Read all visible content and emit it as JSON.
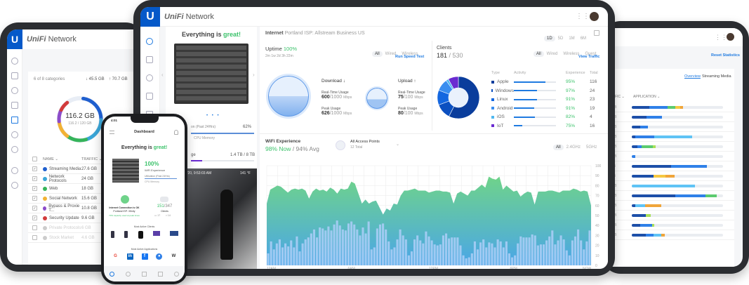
{
  "brand": {
    "name": "Network",
    "prefix": "UniFi",
    "logo_letter": "U"
  },
  "left_tablet": {
    "categories_label": "6 of 8 categories",
    "download": "↓ 45.5 GB",
    "upload": "↑ 70.7 GB",
    "donut_value": "116.2 GB",
    "donut_sub": "116.2 / 120 GB",
    "col_name": "NAME ⌄",
    "col_traffic": "TRAFFIC ⌄",
    "rows": [
      {
        "name": "Streaming Media",
        "traffic": "27.6 GB",
        "color": "#1f5fcf",
        "checked": true
      },
      {
        "name": "Network Protocols",
        "traffic": "24 GB",
        "color": "#3aa6d8",
        "checked": true
      },
      {
        "name": "Web",
        "traffic": "18 GB",
        "color": "#35b45a",
        "checked": true
      },
      {
        "name": "Social Network",
        "traffic": "15.6 GB",
        "color": "#f2b234",
        "checked": true
      },
      {
        "name": "Bypass & Proxie T...",
        "traffic": "10.8 GB",
        "color": "#8c4cc9",
        "checked": true
      },
      {
        "name": "Security Update",
        "traffic": "9.6 GB",
        "color": "#d23b3b",
        "checked": true
      },
      {
        "name": "Private Protocols",
        "traffic": "6 GB",
        "color": "#ccc",
        "checked": false
      },
      {
        "name": "Stock Market",
        "traffic": "4.6 GB",
        "color": "#ccc",
        "checked": false
      }
    ]
  },
  "center": {
    "status_prefix": "Everything is ",
    "status_word": "great!",
    "utilization_label": "on (Past 24Hrs)",
    "utilization_value": "62%",
    "util_legend": "CPU  Memory",
    "storage_label": "ge",
    "storage_value": "1.4 TB / 8 TB",
    "camera_timestamp": "R: 2/25/20, 9:53:03 AM",
    "camera_temp": "141 °F",
    "internet_title": "Internet",
    "internet_isp": "Portland ISP: Allstream Business US",
    "ranges": [
      "1D",
      "5D",
      "1M",
      "6M"
    ],
    "uptime_label": "Uptime",
    "uptime_value": "100%",
    "uptime_duration": "2m 1w 2d 3h 22m",
    "conn_filters": [
      "All",
      "Wired",
      "Wireless"
    ],
    "speed_test": "Run Speed Test",
    "download": {
      "title": "Download ↓",
      "rt_label": "Real-Time Usage",
      "rt_value": "600",
      "rt_max": "/1000",
      "unit": "Mbps",
      "peak_label": "Peak Usage",
      "peak_value": "626",
      "peak_max": "/1000"
    },
    "upload": {
      "title": "Upload ↑",
      "rt_label": "Real-Time Usage",
      "rt_value": "75",
      "rt_max": "/100",
      "unit": "Mbps",
      "peak_label": "Peak Usage",
      "peak_value": "80",
      "peak_max": "/100"
    },
    "clients_label": "Clients",
    "clients_value": "181",
    "clients_total": "/ 530",
    "client_filters": [
      "All",
      "Wired",
      "Wireless",
      "Guest"
    ],
    "view_traffic": "View Traffic",
    "client_headers": [
      "Type",
      "Activity",
      "Experience",
      "Total"
    ],
    "client_types": [
      {
        "type": "Apple",
        "activity": 0.75,
        "experience": "95%",
        "total": "116",
        "color": "#0a3d9c"
      },
      {
        "type": "Windows",
        "activity": 0.55,
        "experience": "97%",
        "total": "24",
        "color": "#0b4fc0"
      },
      {
        "type": "Linux",
        "activity": 0.55,
        "experience": "91%",
        "total": "23",
        "color": "#1467e0"
      },
      {
        "type": "Android",
        "activity": 0.48,
        "experience": "91%",
        "total": "19",
        "color": "#3a8ef0"
      },
      {
        "type": "iOS",
        "activity": 0.5,
        "experience": "82%",
        "total": "4",
        "color": "#4fb8f0"
      },
      {
        "type": "IoT",
        "activity": 0.2,
        "experience": "75%",
        "total": "16",
        "color": "#6a2bd1"
      }
    ],
    "wifi_label": "WiFi Experience",
    "wifi_now": "98% Now",
    "wifi_avg": "/ 94% Avg",
    "ap_label": "All Access Points",
    "ap_total": "12 Total",
    "band_filters": [
      "All",
      "2.4GHz",
      "5GHz"
    ]
  },
  "right_tablet": {
    "reset": "Reset Statistics",
    "tab_overview": "Overview",
    "tab_streaming": "Streaming Media",
    "col_traffic": "FFIC ⌄",
    "col_application": "APPLICATION ⌄",
    "rows": [
      {
        "traffic": "/ 6.9 GB",
        "segments": [
          [
            0.19,
            "#1d4fa8"
          ],
          [
            0.2,
            "#2f80e8"
          ],
          [
            0.09,
            "#5ccb6f"
          ],
          [
            0.05,
            "#f5c842"
          ],
          [
            0.03,
            "#f0a53a"
          ]
        ]
      },
      {
        "traffic": "/ 5.7 GB",
        "segments": [
          [
            0.16,
            "#1d4fa8"
          ],
          [
            0.17,
            "#2f80e8"
          ]
        ]
      },
      {
        "traffic": "/ 8.4 GB",
        "segments": [
          [
            0.09,
            "#1d4fa8"
          ],
          [
            0.09,
            "#2f80e8"
          ]
        ]
      },
      {
        "traffic": "/ 3.3 GB",
        "segments": [
          [
            0.04,
            "#1d4fa8"
          ],
          [
            0.21,
            "#2f80e8"
          ],
          [
            0.41,
            "#5fc3f5"
          ]
        ]
      },
      {
        "traffic": "/ 7.1 GB",
        "segments": [
          [
            0.06,
            "#1d4fa8"
          ],
          [
            0.05,
            "#2f80e8"
          ],
          [
            0.12,
            "#5ccb6f"
          ],
          [
            0.03,
            "#a8e05a"
          ]
        ]
      },
      {
        "traffic": "/ 5.2 GB",
        "segments": [
          [
            0.04,
            "#2f80e8"
          ]
        ]
      },
      {
        "traffic": "/ 14 GB",
        "segments": [
          [
            0.43,
            "#1d4fa8"
          ],
          [
            0.39,
            "#2f80e8"
          ]
        ]
      },
      {
        "traffic": "/ 19 GB",
        "segments": [
          [
            0.24,
            "#1d4fa8"
          ],
          [
            0.13,
            "#f5c842"
          ],
          [
            0.1,
            "#f0a53a"
          ]
        ]
      },
      {
        "traffic": "/ 7.1 GB",
        "segments": [
          [
            0.69,
            "#5fc3f5"
          ]
        ]
      },
      {
        "traffic": "/ 7.1 GB",
        "segments": [
          [
            0.48,
            "#1d4fa8"
          ],
          [
            0.33,
            "#2f80e8"
          ],
          [
            0.12,
            "#5ccb6f"
          ]
        ]
      },
      {
        "traffic": "/ 7.1 GB",
        "segments": [
          [
            0.04,
            "#1d4fa8"
          ],
          [
            0.11,
            "#5fc3f5"
          ],
          [
            0.17,
            "#f0a53a"
          ]
        ]
      },
      {
        "traffic": "/ 7.1 GB",
        "segments": [
          [
            0.15,
            "#1d4fa8"
          ],
          [
            0.06,
            "#a8e05a"
          ]
        ]
      },
      {
        "traffic": "/ 7.1 GB",
        "segments": [
          [
            0.09,
            "#1d4fa8"
          ],
          [
            0.13,
            "#2f80e8"
          ],
          [
            0.03,
            "#a8e05a"
          ]
        ]
      },
      {
        "traffic": "/ 7.1 GB",
        "segments": [
          [
            0.15,
            "#1d4fa8"
          ],
          [
            0.09,
            "#2f80e8"
          ],
          [
            0.08,
            "#5fc3f5"
          ],
          [
            0.04,
            "#f0a53a"
          ]
        ]
      }
    ]
  },
  "phone": {
    "time": "4:01",
    "title": "Dashboard",
    "status_prefix": "Everything is ",
    "status_word": "great!",
    "wifi_value": "100%",
    "wifi_label": "WiFi Experience",
    "util_label": "Utilization (Past 24Hrs)",
    "util_legend": "CPU  Memory",
    "internet_label": "Internet Connection is OK",
    "isp": "Portland ISP: Xfinity",
    "capacity": "70% capacity used at peak times",
    "clients_value": "151",
    "clients_total": "/347",
    "clients_label": "Clients",
    "wired": "17",
    "wireless": "14",
    "most_active_clients": "Most Active Clients",
    "most_active_apps": "Most Active Applications",
    "apps": [
      "G",
      "in",
      "f",
      "●",
      "W"
    ]
  },
  "chart_data": {
    "type": "area+bar",
    "title": "WiFi Experience",
    "x_ticks": [
      "12AM",
      "6AM",
      "12PM",
      "6PM",
      "NOW"
    ],
    "y_ticks": [
      0,
      10,
      20,
      30,
      40,
      50,
      60,
      70,
      80,
      90,
      100
    ],
    "ylim": [
      0,
      100
    ],
    "grid": true,
    "area_color": "#6fd38a",
    "area_color_bottom": "#4aa6e8",
    "bar_color": "#a9cdf5",
    "area_values": [
      62,
      76,
      78,
      80,
      79,
      76,
      73,
      76,
      77,
      76,
      77,
      75,
      67,
      74,
      77,
      75,
      76,
      74,
      78,
      76,
      72,
      77,
      76,
      77,
      84,
      82,
      72,
      62,
      66,
      62,
      64,
      65,
      58,
      51,
      57,
      55,
      62,
      61,
      70,
      75,
      75,
      76,
      77,
      75,
      75,
      75,
      73,
      74,
      75,
      75,
      74,
      74,
      73,
      62,
      72,
      74,
      72,
      70,
      75,
      75,
      78,
      81,
      78,
      89,
      87,
      86,
      89,
      76,
      80,
      77,
      74,
      75,
      69,
      72,
      74,
      73,
      61,
      74,
      74,
      74,
      75,
      75,
      74,
      73,
      75,
      75,
      75,
      77,
      76,
      74,
      75,
      74,
      60
    ],
    "bar_values": [
      12,
      24,
      16,
      22,
      26,
      18,
      22,
      19,
      25,
      18,
      29,
      14,
      22,
      26,
      28,
      32,
      36,
      28,
      38,
      37,
      35,
      39,
      35,
      41,
      45,
      40,
      36,
      35,
      42,
      44,
      41,
      36,
      30,
      38,
      32,
      44,
      16,
      18,
      37,
      41,
      42,
      36,
      24,
      16,
      18,
      26,
      36,
      30,
      26,
      10,
      14,
      26,
      30,
      25,
      22,
      34,
      29,
      25,
      21,
      20,
      21,
      30,
      32,
      27,
      28,
      28,
      28,
      20,
      10,
      7,
      8,
      12,
      24,
      16,
      23,
      26,
      18,
      23,
      22,
      18,
      26,
      24,
      18,
      24,
      12,
      8,
      10,
      22,
      29,
      28,
      28,
      28,
      31,
      30,
      20,
      21,
      21,
      25,
      29,
      35,
      21,
      25,
      30,
      26,
      15,
      10,
      25,
      29,
      36,
      25,
      16,
      24,
      35
    ]
  }
}
